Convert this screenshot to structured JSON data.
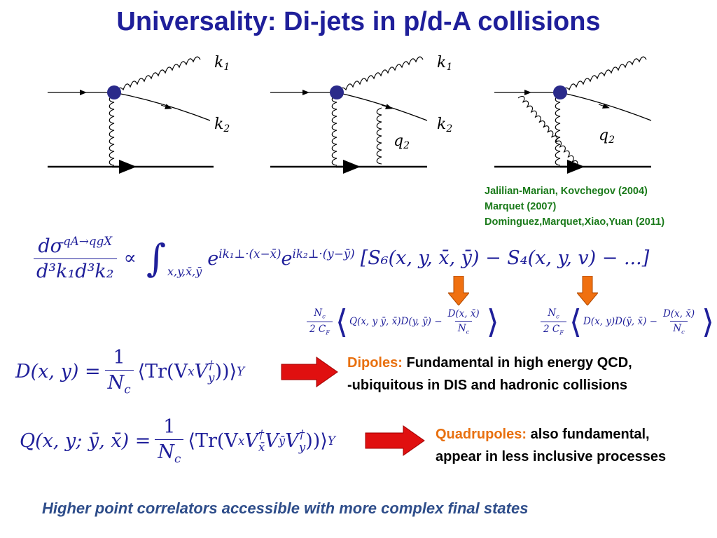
{
  "title": "Universality: Di-jets in p/d-A collisions",
  "diagram_labels": {
    "k1": "k",
    "k1_sub": "1",
    "k2": "k",
    "k2_sub": "2",
    "q2": "q",
    "q2_sub": "2"
  },
  "references": [
    "Jalilian-Marian, Kovchegov (2004)",
    "Marquet (2007)",
    "Dominguez,Marquet,Xiao,Yuan (2011)"
  ],
  "cross_section": {
    "numerator": "dσ",
    "numerator_sup": "qA→qgX",
    "denominator": "d³k₁d³k₂",
    "proportional": "∝",
    "integral": "∫",
    "integral_sub": "x,y,x̄,ȳ",
    "exp1": "e",
    "exp1_sup": "ik₁⊥·(x−x̄)",
    "exp2": "e",
    "exp2_sup": "ik₂⊥·(y−ȳ)",
    "bracket": "[S₆(x, y, x̄, ȳ) − S₄(x, y, v) − ...]"
  },
  "s6_expansion": {
    "pref_num": "N",
    "pref_num_sub": "c",
    "pref_den": "2 C",
    "pref_den_sub": "F",
    "body": "Q(x, y ȳ, x̄)D(y, ȳ) −",
    "frac_num": "D(x, x̄)",
    "frac_den": "N",
    "frac_den_sub": "c"
  },
  "s4_expansion": {
    "pref_num": "N",
    "pref_num_sub": "c",
    "pref_den": "2 C",
    "pref_den_sub": "F",
    "body": "D(x, y)D(ȳ, x̄) −",
    "frac_num": "D(x, x̄)",
    "frac_den": "N",
    "frac_den_sub": "c"
  },
  "dipole_eq": {
    "lhs": "D(x, y) =",
    "frac_num": "1",
    "frac_den": "N",
    "frac_den_sub": "c",
    "body": "Tr(V",
    "v1_sub": "x",
    "v2": "V",
    "v2_sup": "†",
    "v2_sub": "y",
    "close": "))",
    "subY": "Y"
  },
  "quad_eq": {
    "lhs": "Q(x, y; ȳ, x̄) =",
    "frac_num": "1",
    "frac_den": "N",
    "frac_den_sub": "c",
    "body": "Tr(V",
    "v1_sub": "x",
    "v2": "V",
    "v2_sup": "†",
    "v2_sub": "x̄",
    "v3": "V",
    "v3_sub": "ȳ",
    "v4": "V",
    "v4_sup": "†",
    "v4_sub": "y",
    "close": "))",
    "subY": "Y"
  },
  "dipoles_note": {
    "label": "Dipoles:",
    "text1": " Fundamental in high energy QCD,",
    "text2": "-ubiquitous in DIS and hadronic collisions"
  },
  "quadrupoles_note": {
    "label": "Quadrupoles:",
    "text1": " also fundamental,",
    "text2": "appear in less inclusive processes"
  },
  "footer": "Higher point correlators accessible with more complex final states",
  "colors": {
    "title": "#1f1f9a",
    "references": "#1a7a1a",
    "highlight": "#e8700f",
    "red_arrow": "#e01010",
    "orange_arrow": "#f07010",
    "footer": "#2e4d8a",
    "vertex": "#2a2a8a"
  }
}
